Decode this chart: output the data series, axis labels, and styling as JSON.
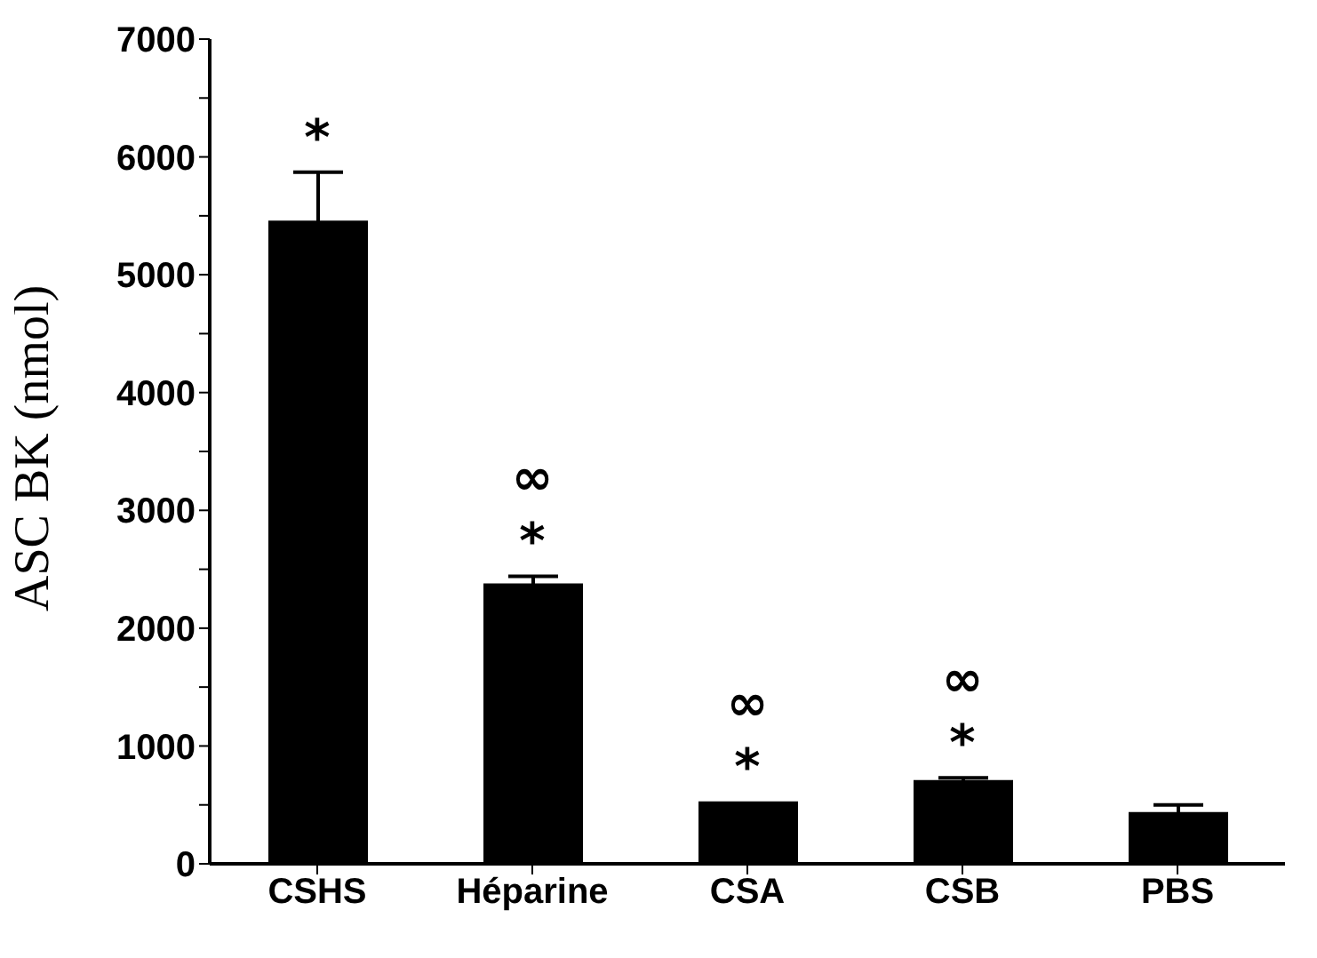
{
  "chart_data": {
    "type": "bar",
    "ylabel": "ASC BK (nmol)",
    "categories": [
      "CSHS",
      "Héparine",
      "CSA",
      "CSB",
      "PBS"
    ],
    "values": [
      5460,
      2380,
      530,
      710,
      440
    ],
    "errors": [
      410,
      60,
      null,
      20,
      60
    ],
    "color": "#000000",
    "ylim": [
      0,
      7000
    ],
    "yticks": [
      0,
      {
        "value": 500,
        "label": null
      },
      1000,
      {
        "value": 1500,
        "label": null
      },
      2000,
      {
        "value": 2500,
        "label": null
      },
      3000,
      {
        "value": 3500,
        "label": null
      },
      4000,
      {
        "value": 4500,
        "label": null
      },
      5000,
      {
        "value": 5500,
        "label": null
      },
      6000,
      {
        "value": 6500,
        "label": null
      },
      7000
    ],
    "grid": false,
    "legend": false,
    "annotations": [
      {
        "text": "*",
        "x": "CSHS",
        "y": 5460
      },
      {
        "text": "*",
        "x": "Héparine",
        "y": 2380
      },
      {
        "text": "∞",
        "x": "Héparine",
        "y": 2380
      },
      {
        "text": "*",
        "x": "CSA",
        "y": 530
      },
      {
        "text": "∞",
        "x": "CSA",
        "y": 530
      },
      {
        "text": "*",
        "x": "CSB",
        "y": 710
      },
      {
        "text": "∞",
        "x": "CSB",
        "y": 710
      }
    ]
  }
}
